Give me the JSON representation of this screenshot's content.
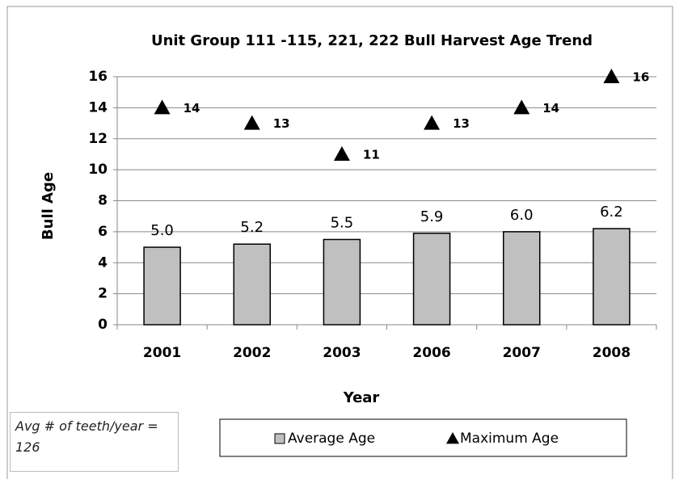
{
  "chart_data": {
    "type": "bar",
    "title": "Unit Group 111 -115, 221, 222 Bull Harvest Age Trend",
    "x_label": "Year",
    "y_label": "Bull Age",
    "categories": [
      "2001",
      "2002",
      "2003",
      "2006",
      "2007",
      "2008"
    ],
    "series": [
      {
        "name": "Average Age",
        "color": "#c0c0c0",
        "values": [
          5.0,
          5.2,
          5.5,
          5.9,
          6.0,
          6.2
        ],
        "value_labels": [
          "5.0",
          "5.2",
          "5.5",
          "5.9",
          "6.0",
          "6.2"
        ]
      },
      {
        "name": "Maximum Age",
        "type": "scatter",
        "marker": "triangle",
        "color": "#000000",
        "values": [
          14,
          13,
          11,
          13,
          14,
          16
        ]
      }
    ],
    "ylim": [
      0,
      16
    ],
    "yticks": [
      0,
      2,
      4,
      6,
      8,
      10,
      12,
      14,
      16
    ],
    "grid": true,
    "legend": "bottom",
    "annotation": "Avg # of teeth/year = 126"
  }
}
